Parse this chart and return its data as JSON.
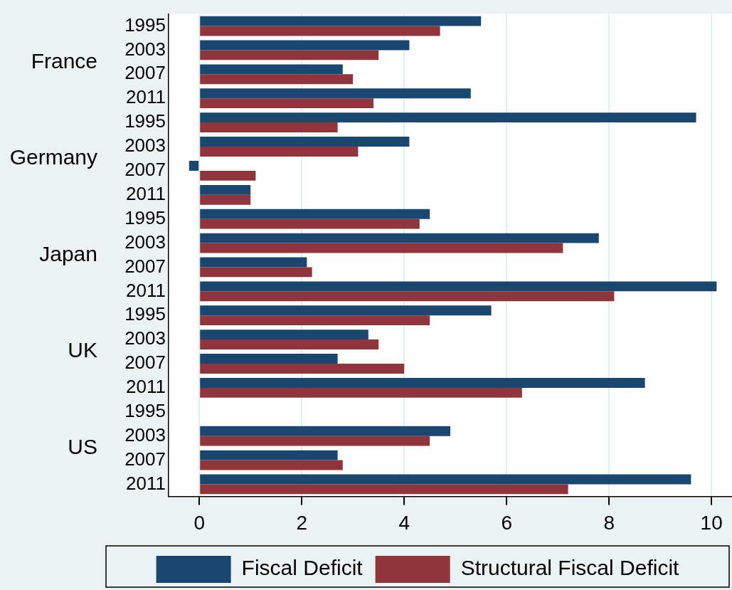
{
  "chart_data": {
    "type": "bar",
    "orientation": "horizontal",
    "categories": [
      "1995",
      "2003",
      "2007",
      "2011",
      "1995",
      "2003",
      "2007",
      "2011",
      "1995",
      "2003",
      "2007",
      "2011",
      "1995",
      "2003",
      "2007",
      "2011",
      "1995",
      "2003",
      "2007",
      "2011"
    ],
    "series": [
      {
        "name": "Fiscal Deficit",
        "color": "#1a476f",
        "values": [
          5.5,
          4.1,
          2.8,
          5.3,
          9.7,
          4.1,
          -0.2,
          1.0,
          4.5,
          7.8,
          2.1,
          10.1,
          5.7,
          3.3,
          2.7,
          8.7,
          null,
          4.9,
          2.7,
          9.6
        ]
      },
      {
        "name": "Structural Fiscal Deficit",
        "color": "#90353b",
        "values": [
          4.7,
          3.5,
          3.0,
          3.4,
          2.7,
          3.1,
          1.1,
          1.0,
          4.3,
          7.1,
          2.2,
          8.1,
          4.5,
          3.5,
          4.0,
          6.3,
          null,
          4.5,
          2.8,
          7.2
        ]
      }
    ],
    "annotations": [
      "France",
      "Germany",
      "Japan",
      "UK",
      "US"
    ],
    "xlim": [
      -0.6,
      10.4
    ],
    "xticks": [
      0,
      2,
      4,
      6,
      8,
      10
    ],
    "grid": "x",
    "legend": "bottom"
  }
}
